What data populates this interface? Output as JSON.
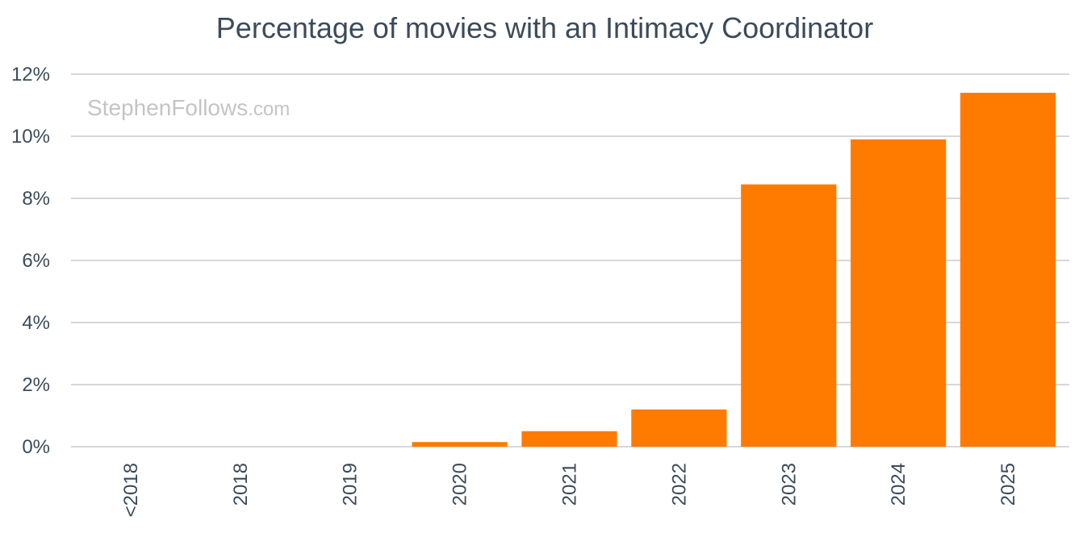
{
  "chart_data": {
    "type": "bar",
    "title": "Percentage of movies with an Intimacy Coordinator",
    "categories": [
      "<2018",
      "2018",
      "2019",
      "2020",
      "2021",
      "2022",
      "2023",
      "2024",
      "2025"
    ],
    "values": [
      0,
      0,
      0,
      0.15,
      0.5,
      1.2,
      8.45,
      9.9,
      11.4
    ],
    "unit": "%",
    "ylim": [
      0,
      12
    ],
    "yticks": [
      "0%",
      "2%",
      "4%",
      "6%",
      "8%",
      "10%",
      "12%"
    ],
    "grid": true,
    "legend": "none",
    "bar_color": "#ff7b00"
  },
  "watermark": {
    "main": "StephenFollows",
    "suffix": ".com"
  }
}
